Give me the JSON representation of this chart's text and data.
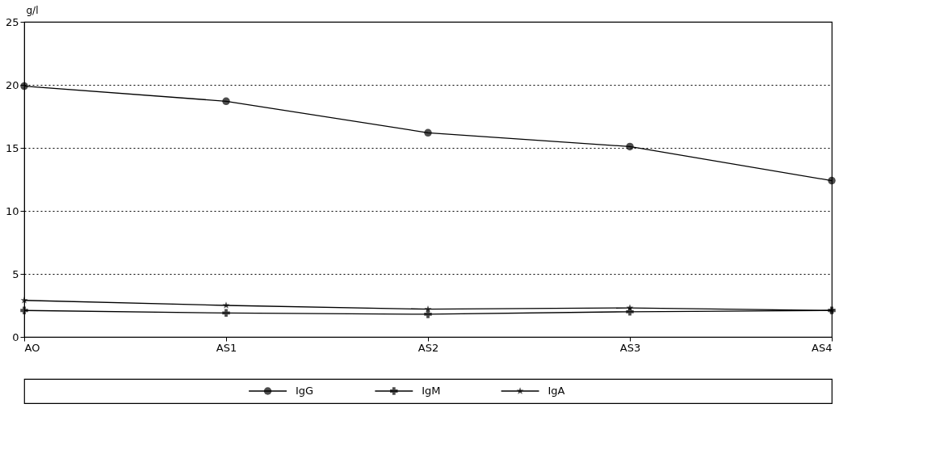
{
  "chart_data": {
    "type": "line",
    "ylabel": "g/l",
    "categories": [
      "AO",
      "AS1",
      "AS2",
      "AS3",
      "AS4"
    ],
    "series": [
      {
        "name": "IgG",
        "color": "#000000",
        "marker": "circle",
        "values": [
          19.9,
          18.7,
          16.2,
          15.1,
          12.4
        ]
      },
      {
        "name": "IgM",
        "color": "#000000",
        "marker": "cross",
        "values": [
          2.1,
          1.9,
          1.8,
          2.0,
          2.1
        ]
      },
      {
        "name": "IgA",
        "color": "#000000",
        "marker": "star",
        "values": [
          2.9,
          2.5,
          2.2,
          2.3,
          2.1
        ]
      }
    ],
    "ylim": [
      0,
      25
    ],
    "yticks": [
      0,
      5,
      10,
      15,
      20,
      25
    ],
    "grid": "y",
    "legend": "bottom",
    "line_style": "solid"
  }
}
